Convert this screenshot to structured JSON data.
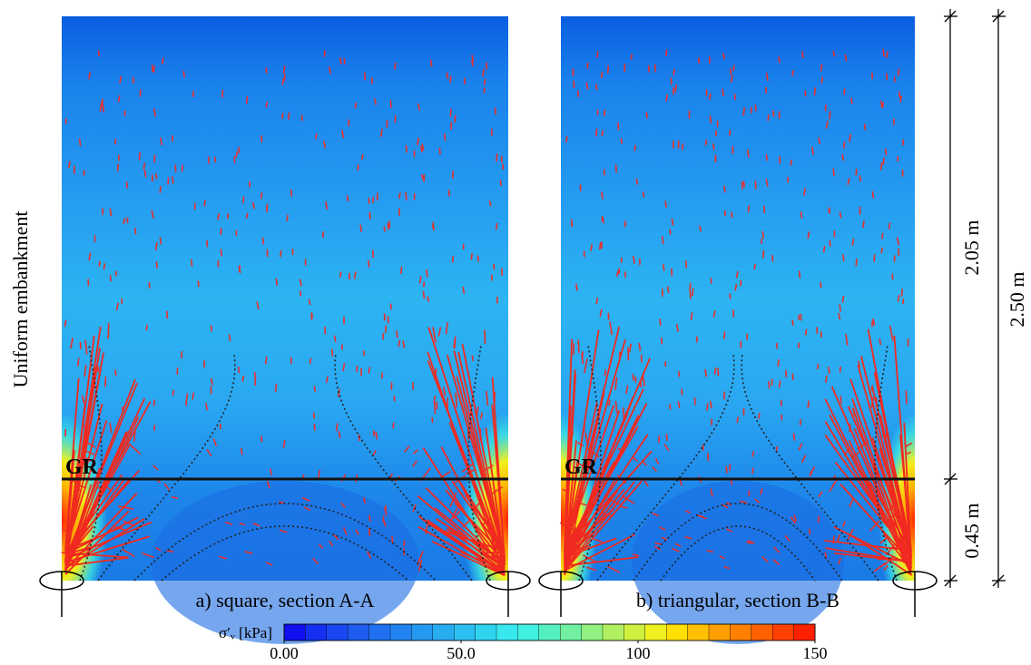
{
  "side_label": "Uniform embankment",
  "panels": [
    {
      "caption": "a) square, section A-A",
      "layer_label": "GR"
    },
    {
      "caption": "b) triangular, section B-B",
      "layer_label": "GR"
    }
  ],
  "dimensions": {
    "upper": "2.05 m",
    "lower": "0.45 m",
    "total": "2.50 m"
  },
  "colorbar": {
    "label": "σ′ᵥ [kPa]",
    "lim": [
      0,
      150
    ],
    "ticks": [
      {
        "value": 0,
        "label": "0.00"
      },
      {
        "value": 50,
        "label": "50.0"
      },
      100,
      150
    ],
    "colors": [
      "#1010f0",
      "#1530f0",
      "#1a48f0",
      "#1e5cf0",
      "#2070f0",
      "#2284f0",
      "#2598f0",
      "#28acf0",
      "#2cc0f0",
      "#30d4f0",
      "#38e8ee",
      "#40f0e0",
      "#55f0c0",
      "#70f0a0",
      "#90f080",
      "#b0f060",
      "#d0f040",
      "#f0f020",
      "#ffe000",
      "#ffc000",
      "#ffa000",
      "#ff8000",
      "#ff6000",
      "#ff4000",
      "#ff2000"
    ]
  }
}
